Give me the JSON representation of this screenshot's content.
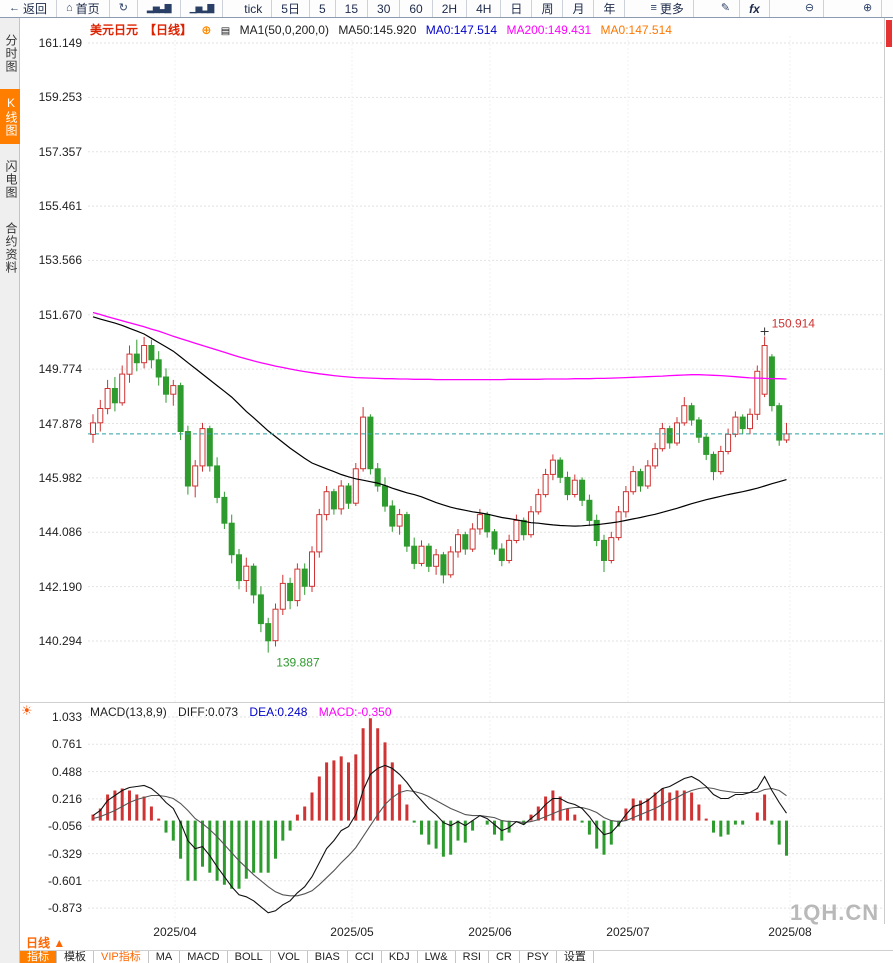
{
  "colors": {
    "up": "#cf3333",
    "down": "#2e9b2e",
    "ma50": "#000000",
    "ma200": "#ff00ff",
    "price_line": "#2aa1a1",
    "accent_orange": "#ff7e00",
    "title_red": "#dd2200",
    "blue": "#0000cc",
    "magenta": "#ff00ff"
  },
  "icons": {
    "back": "←",
    "home": "⌂",
    "refresh": "↻",
    "bar_chart": "▂▅▃▇",
    "bar_chart2": "▁▅▂▇",
    "more": "≡",
    "draw": "✎",
    "zoom_out": "⊖",
    "zoom_in": "⊕",
    "zoom_circle": "⊕",
    "kline_settings": "▤",
    "sun": "☀",
    "dropdown_up": "▲"
  },
  "toolbar": {
    "items": [
      {
        "name": "back",
        "icon": "back",
        "label": "返回"
      },
      {
        "name": "home",
        "icon": "home",
        "label": "首页"
      },
      {
        "name": "refresh",
        "icon": "refresh",
        "label": ""
      },
      {
        "name": "bar-chart",
        "icon": "bar_chart",
        "label": ""
      },
      {
        "name": "volume-chart",
        "icon": "bar_chart2",
        "label": ""
      },
      {
        "name": "tick",
        "label": "tick"
      },
      {
        "name": "5d",
        "label": "5日"
      },
      {
        "name": "m5",
        "label": "5"
      },
      {
        "name": "m15",
        "label": "15"
      },
      {
        "name": "m30",
        "label": "30"
      },
      {
        "name": "m60",
        "label": "60"
      },
      {
        "name": "h2",
        "label": "2H"
      },
      {
        "name": "h4",
        "label": "4H"
      },
      {
        "name": "day",
        "label": "日"
      },
      {
        "name": "week",
        "label": "周"
      },
      {
        "name": "month",
        "label": "月"
      },
      {
        "name": "year",
        "label": "年"
      },
      {
        "name": "more",
        "icon": "more",
        "label": "更多"
      },
      {
        "name": "draw",
        "icon": "draw",
        "label": ""
      },
      {
        "name": "fx",
        "label": "fx"
      },
      {
        "name": "zoom-out",
        "icon": "zoom_out",
        "label": ""
      },
      {
        "name": "zoom-in",
        "icon": "zoom_in",
        "label": ""
      }
    ]
  },
  "sidebar": {
    "items": [
      {
        "name": "time-chart",
        "label": "分时图",
        "active": false
      },
      {
        "name": "kline-chart",
        "label": "K线图",
        "active": true
      },
      {
        "name": "lightning-chart",
        "label": "闪电图",
        "active": false
      },
      {
        "name": "contract-info",
        "label": "合约资料",
        "active": false
      }
    ]
  },
  "chart_header": {
    "symbol": "美元日元",
    "period": "【日线】",
    "ma_settings": "MA1(50,0,200,0)",
    "ma50_label": "MA50:145.920",
    "ma0_blue": "MA0:147.514",
    "ma200_label": "MA200:149.431",
    "ma0_orange": "MA0:147.514"
  },
  "macd_header": {
    "title": "MACD(13,8,9)",
    "diff": "DIFF:0.073",
    "dea": "DEA:0.248",
    "macd": "MACD:-0.350"
  },
  "watermark": "1QH.CN",
  "bottom": {
    "period_label": "日线",
    "tabs": [
      {
        "name": "indicator",
        "label": "指标",
        "selected": true
      },
      {
        "name": "template",
        "label": "模板"
      },
      {
        "name": "vip-indicator",
        "label": "VIP指标",
        "vip": true
      },
      {
        "name": "ma",
        "label": "MA"
      },
      {
        "name": "macd",
        "label": "MACD"
      },
      {
        "name": "boll",
        "label": "BOLL"
      },
      {
        "name": "vol",
        "label": "VOL"
      },
      {
        "name": "bias",
        "label": "BIAS"
      },
      {
        "name": "cci",
        "label": "CCI"
      },
      {
        "name": "kdj",
        "label": "KDJ"
      },
      {
        "name": "lw",
        "label": "LW&"
      },
      {
        "name": "rsi",
        "label": "RSI"
      },
      {
        "name": "cr",
        "label": "CR"
      },
      {
        "name": "psy",
        "label": "PSY"
      },
      {
        "name": "settings",
        "label": "设置"
      }
    ]
  },
  "chart_data": {
    "type": "candlestick+macd",
    "title": "美元日元 日线 (USD/JPY daily)",
    "y_axis_labels_main": [
      161.149,
      159.253,
      157.357,
      155.461,
      153.566,
      151.67,
      149.774,
      147.878,
      145.982,
      144.086,
      142.19,
      140.294
    ],
    "y_axis_labels_macd": [
      1.033,
      0.761,
      0.488,
      0.216,
      -0.056,
      -0.329,
      -0.601,
      -0.873
    ],
    "x_labels": [
      "2025/04",
      "2025/05",
      "2025/06",
      "2025/07",
      "2025/08"
    ],
    "current_price": 147.514,
    "high_annotation": 150.914,
    "low_annotation": 139.887,
    "ma50_current": 145.92,
    "ma200_current": 149.431,
    "macd_diff_current": 0.073,
    "macd_dea_current": 0.248,
    "macd_hist_current": -0.35,
    "candles": [
      [
        147.5,
        148.2,
        147.2,
        147.9
      ],
      [
        147.9,
        148.7,
        147.6,
        148.4
      ],
      [
        148.4,
        149.4,
        148.2,
        149.1
      ],
      [
        149.1,
        149.5,
        148.3,
        148.6
      ],
      [
        148.6,
        149.9,
        148.5,
        149.6
      ],
      [
        149.6,
        150.6,
        149.3,
        150.3
      ],
      [
        150.3,
        150.8,
        149.7,
        150.0
      ],
      [
        150.0,
        150.9,
        149.8,
        150.6
      ],
      [
        150.6,
        150.8,
        149.8,
        150.1
      ],
      [
        150.1,
        150.4,
        149.2,
        149.5
      ],
      [
        149.5,
        149.8,
        148.6,
        148.9
      ],
      [
        148.9,
        149.4,
        148.5,
        149.2
      ],
      [
        149.2,
        149.3,
        147.3,
        147.6
      ],
      [
        147.6,
        147.8,
        145.4,
        145.7
      ],
      [
        145.7,
        146.6,
        145.3,
        146.4
      ],
      [
        146.4,
        147.9,
        146.2,
        147.7
      ],
      [
        147.7,
        147.8,
        146.2,
        146.4
      ],
      [
        146.4,
        146.7,
        145.1,
        145.3
      ],
      [
        145.3,
        145.5,
        144.2,
        144.4
      ],
      [
        144.4,
        144.7,
        143.0,
        143.3
      ],
      [
        143.3,
        143.5,
        142.1,
        142.4
      ],
      [
        142.4,
        143.2,
        142.0,
        142.9
      ],
      [
        142.9,
        143.0,
        141.6,
        141.9
      ],
      [
        141.9,
        142.2,
        140.6,
        140.9
      ],
      [
        140.9,
        141.1,
        139.887,
        140.3
      ],
      [
        140.3,
        141.6,
        140.1,
        141.4
      ],
      [
        141.4,
        142.6,
        141.2,
        142.3
      ],
      [
        142.3,
        142.5,
        141.4,
        141.7
      ],
      [
        141.7,
        143.0,
        141.5,
        142.8
      ],
      [
        142.8,
        143.0,
        141.9,
        142.2
      ],
      [
        142.2,
        143.6,
        142.0,
        143.4
      ],
      [
        143.4,
        144.9,
        143.2,
        144.7
      ],
      [
        144.7,
        145.7,
        144.5,
        145.5
      ],
      [
        145.5,
        145.6,
        144.7,
        144.9
      ],
      [
        144.9,
        145.9,
        144.7,
        145.7
      ],
      [
        145.7,
        145.8,
        144.9,
        145.1
      ],
      [
        145.1,
        146.5,
        145.0,
        146.3
      ],
      [
        146.3,
        148.45,
        146.2,
        148.1
      ],
      [
        148.1,
        148.2,
        146.1,
        146.3
      ],
      [
        146.3,
        146.5,
        145.5,
        145.7
      ],
      [
        145.7,
        146.0,
        144.8,
        145.0
      ],
      [
        145.0,
        145.2,
        144.1,
        144.3
      ],
      [
        144.3,
        144.9,
        144.0,
        144.7
      ],
      [
        144.7,
        144.8,
        143.4,
        143.6
      ],
      [
        143.6,
        143.9,
        142.8,
        143.0
      ],
      [
        143.0,
        143.8,
        142.9,
        143.6
      ],
      [
        143.6,
        143.7,
        142.7,
        142.9
      ],
      [
        142.9,
        143.5,
        142.6,
        143.3
      ],
      [
        143.3,
        143.4,
        142.3,
        142.6
      ],
      [
        142.6,
        143.6,
        142.5,
        143.4
      ],
      [
        143.4,
        144.2,
        143.2,
        144.0
      ],
      [
        144.0,
        144.1,
        143.3,
        143.5
      ],
      [
        143.5,
        144.4,
        143.4,
        144.2
      ],
      [
        144.2,
        144.9,
        144.0,
        144.7
      ],
      [
        144.7,
        144.8,
        143.9,
        144.1
      ],
      [
        144.1,
        144.2,
        143.3,
        143.5
      ],
      [
        143.5,
        143.7,
        142.9,
        143.1
      ],
      [
        143.1,
        144.0,
        143.0,
        143.8
      ],
      [
        143.8,
        144.7,
        143.7,
        144.5
      ],
      [
        144.5,
        144.6,
        143.8,
        144.0
      ],
      [
        144.0,
        145.0,
        143.9,
        144.8
      ],
      [
        144.8,
        145.6,
        144.7,
        145.4
      ],
      [
        145.4,
        146.3,
        145.3,
        146.1
      ],
      [
        146.1,
        146.8,
        145.9,
        146.6
      ],
      [
        146.6,
        146.7,
        145.8,
        146.0
      ],
      [
        146.0,
        146.2,
        145.2,
        145.4
      ],
      [
        145.4,
        146.1,
        145.3,
        145.9
      ],
      [
        145.9,
        146.0,
        145.0,
        145.2
      ],
      [
        145.2,
        145.4,
        144.3,
        144.5
      ],
      [
        144.5,
        144.7,
        143.6,
        143.8
      ],
      [
        143.8,
        144.0,
        142.7,
        143.1
      ],
      [
        143.1,
        144.1,
        143.0,
        143.9
      ],
      [
        143.9,
        145.0,
        143.8,
        144.8
      ],
      [
        144.8,
        145.7,
        144.6,
        145.5
      ],
      [
        145.5,
        146.4,
        145.4,
        146.2
      ],
      [
        146.2,
        146.3,
        145.5,
        145.7
      ],
      [
        145.7,
        146.6,
        145.6,
        146.4
      ],
      [
        146.4,
        147.2,
        146.3,
        147.0
      ],
      [
        147.0,
        147.9,
        146.9,
        147.7
      ],
      [
        147.7,
        147.8,
        147.0,
        147.2
      ],
      [
        147.2,
        148.1,
        147.1,
        147.9
      ],
      [
        147.9,
        148.8,
        147.8,
        148.5
      ],
      [
        148.5,
        148.6,
        147.8,
        148.0
      ],
      [
        148.0,
        148.1,
        147.2,
        147.4
      ],
      [
        147.4,
        147.5,
        146.6,
        146.8
      ],
      [
        146.8,
        146.9,
        145.9,
        146.2
      ],
      [
        146.2,
        147.1,
        146.1,
        146.9
      ],
      [
        146.9,
        147.7,
        146.8,
        147.5
      ],
      [
        147.5,
        148.3,
        147.4,
        148.1
      ],
      [
        148.1,
        148.2,
        147.5,
        147.7
      ],
      [
        147.7,
        148.4,
        147.5,
        148.2
      ],
      [
        148.2,
        149.9,
        148.0,
        149.7
      ],
      [
        148.9,
        150.914,
        148.8,
        150.6
      ],
      [
        150.2,
        150.3,
        148.3,
        148.5
      ],
      [
        148.5,
        148.6,
        147.1,
        147.3
      ],
      [
        147.3,
        147.9,
        147.2,
        147.514
      ]
    ],
    "ma50": [
      151.6,
      151.52,
      151.45,
      151.38,
      151.3,
      151.2,
      151.1,
      151.0,
      150.85,
      150.7,
      150.55,
      150.4,
      150.2,
      150.0,
      149.8,
      149.6,
      149.4,
      149.2,
      149.0,
      148.8,
      148.55,
      148.3,
      148.08,
      147.85,
      147.62,
      147.42,
      147.22,
      147.02,
      146.84,
      146.66,
      146.5,
      146.4,
      146.3,
      146.2,
      146.1,
      146.02,
      145.95,
      145.9,
      145.85,
      145.8,
      145.72,
      145.62,
      145.54,
      145.46,
      145.4,
      145.32,
      145.22,
      145.12,
      145.04,
      144.96,
      144.9,
      144.85,
      144.8,
      144.76,
      144.72,
      144.66,
      144.6,
      144.56,
      144.52,
      144.47,
      144.42,
      144.4,
      144.37,
      144.34,
      144.32,
      144.31,
      144.3,
      144.31,
      144.33,
      144.35,
      144.38,
      144.41,
      144.45,
      144.5,
      144.55,
      144.6,
      144.66,
      144.71,
      144.78,
      144.85,
      144.92,
      145.0,
      145.08,
      145.15,
      145.22,
      145.28,
      145.34,
      145.4,
      145.45,
      145.5,
      145.56,
      145.62,
      145.7,
      145.78,
      145.85,
      145.92
    ],
    "ma200": [
      151.75,
      151.68,
      151.6,
      151.53,
      151.46,
      151.39,
      151.32,
      151.25,
      151.17,
      151.1,
      151.01,
      150.92,
      150.84,
      150.76,
      150.68,
      150.6,
      150.52,
      150.44,
      150.36,
      150.28,
      150.2,
      150.13,
      150.06,
      150.0,
      149.94,
      149.88,
      149.83,
      149.78,
      149.73,
      149.69,
      149.65,
      149.61,
      149.58,
      149.55,
      149.52,
      149.5,
      149.48,
      149.47,
      149.46,
      149.45,
      149.44,
      149.44,
      149.43,
      149.43,
      149.42,
      149.42,
      149.42,
      149.41,
      149.41,
      149.41,
      149.41,
      149.41,
      149.41,
      149.41,
      149.41,
      149.41,
      149.41,
      149.42,
      149.42,
      149.42,
      149.42,
      149.42,
      149.43,
      149.43,
      149.43,
      149.43,
      149.44,
      149.44,
      149.44,
      149.45,
      149.45,
      149.46,
      149.47,
      149.48,
      149.49,
      149.5,
      149.51,
      149.52,
      149.53,
      149.55,
      149.56,
      149.57,
      149.58,
      149.58,
      149.57,
      149.56,
      149.55,
      149.53,
      149.51,
      149.49,
      149.47,
      149.46,
      149.45,
      149.44,
      149.44,
      149.43
    ],
    "macd_diff": [
      0.05,
      0.1,
      0.2,
      0.25,
      0.3,
      0.33,
      0.34,
      0.35,
      0.32,
      0.26,
      0.18,
      0.12,
      -0.02,
      -0.2,
      -0.28,
      -0.26,
      -0.35,
      -0.46,
      -0.56,
      -0.66,
      -0.74,
      -0.76,
      -0.8,
      -0.86,
      -0.92,
      -0.9,
      -0.84,
      -0.8,
      -0.72,
      -0.66,
      -0.56,
      -0.42,
      -0.28,
      -0.2,
      -0.1,
      -0.06,
      0.06,
      0.3,
      0.46,
      0.52,
      0.55,
      0.52,
      0.46,
      0.38,
      0.28,
      0.2,
      0.12,
      0.06,
      -0.02,
      -0.05,
      -0.01,
      -0.05,
      0.0,
      0.05,
      0.02,
      -0.04,
      -0.1,
      -0.07,
      -0.01,
      -0.04,
      0.02,
      0.08,
      0.16,
      0.22,
      0.22,
      0.18,
      0.16,
      0.12,
      0.04,
      -0.06,
      -0.14,
      -0.12,
      -0.04,
      0.06,
      0.14,
      0.16,
      0.2,
      0.26,
      0.32,
      0.34,
      0.38,
      0.42,
      0.44,
      0.4,
      0.34,
      0.26,
      0.22,
      0.22,
      0.26,
      0.26,
      0.28,
      0.32,
      0.44,
      0.3,
      0.18,
      0.073
    ],
    "macd_dea": [
      0.02,
      0.04,
      0.07,
      0.1,
      0.14,
      0.18,
      0.21,
      0.23,
      0.25,
      0.25,
      0.24,
      0.22,
      0.17,
      0.1,
      0.02,
      -0.03,
      -0.09,
      -0.16,
      -0.24,
      -0.32,
      -0.4,
      -0.47,
      -0.54,
      -0.6,
      -0.66,
      -0.71,
      -0.74,
      -0.75,
      -0.75,
      -0.73,
      -0.7,
      -0.64,
      -0.57,
      -0.5,
      -0.42,
      -0.35,
      -0.27,
      -0.16,
      -0.05,
      0.06,
      0.16,
      0.23,
      0.28,
      0.3,
      0.29,
      0.27,
      0.24,
      0.2,
      0.16,
      0.12,
      0.09,
      0.06,
      0.05,
      0.05,
      0.04,
      0.03,
      0.0,
      -0.01,
      -0.01,
      -0.02,
      -0.01,
      0.01,
      0.04,
      0.07,
      0.1,
      0.12,
      0.13,
      0.13,
      0.11,
      0.08,
      0.03,
      0.0,
      -0.01,
      0.0,
      0.03,
      0.06,
      0.09,
      0.12,
      0.16,
      0.2,
      0.23,
      0.27,
      0.3,
      0.32,
      0.33,
      0.32,
      0.3,
      0.29,
      0.28,
      0.28,
      0.28,
      0.28,
      0.31,
      0.32,
      0.3,
      0.248
    ]
  }
}
